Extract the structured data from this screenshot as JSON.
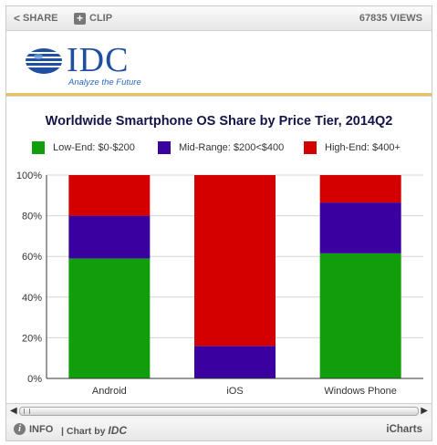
{
  "toolbar": {
    "share_label": "SHARE",
    "clip_label": "CLIP",
    "views": "67835 VIEWS"
  },
  "logo": {
    "text": "IDC",
    "tagline": "Analyze the Future"
  },
  "colors": {
    "low": "#119e0b",
    "mid": "#3a00a0",
    "high": "#d40000"
  },
  "chart_data": {
    "type": "bar",
    "stacked": true,
    "title": "Worldwide Smartphone OS Share by Price Tier, 2014Q2",
    "categories": [
      "Android",
      "iOS",
      "Windows Phone"
    ],
    "series": [
      {
        "name": "Low-End: $0-$200",
        "values": [
          59,
          0,
          61.5
        ]
      },
      {
        "name": "Mid-Range: $200<$400",
        "values": [
          21,
          16,
          25
        ]
      },
      {
        "name": "High-End: $400+",
        "values": [
          20,
          84,
          13.5
        ]
      }
    ],
    "ylim": [
      0,
      100
    ],
    "yticks": [
      "0%",
      "20%",
      "40%",
      "60%",
      "80%",
      "100%"
    ],
    "grid": true,
    "legend": "top"
  },
  "footer": {
    "info_label": "INFO",
    "chart_by_prefix": "| Chart by",
    "chart_by_source": "IDC",
    "brand": "iCharts"
  }
}
